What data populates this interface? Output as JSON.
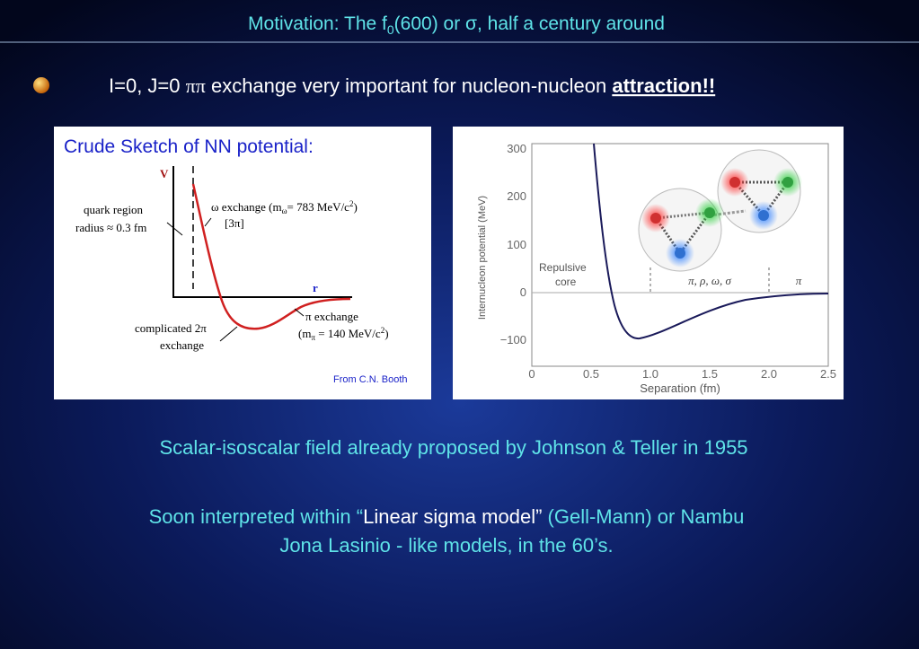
{
  "title": {
    "before": "Motivation: The f",
    "sub": "0",
    "after": "(600) or σ, half a century around"
  },
  "bullet": {
    "text": "I=0, J=0 ",
    "pipi": "ππ",
    "middle": " exchange very important for nucleon-nucleon ",
    "emph": "attraction!!"
  },
  "left_figure": {
    "heading": "Crude Sketch of NN potential:",
    "v_label": "V",
    "r_label": "r",
    "quark_1": "quark region",
    "quark_2": "radius ≈ 0.3 fm",
    "omega_1": "ω exchange (m",
    "omega_sub": "ω",
    "omega_2": "= 783 MeV/c",
    "omega_sup": "2",
    "omega_3": ")",
    "omega_4": "[3π]",
    "two_pi_1": "complicated 2π",
    "two_pi_2": "exchange",
    "pi_1": "π exchange",
    "pi_2": "(m",
    "pi_sub": "π",
    "pi_3": " = 140 MeV/c",
    "pi_sup": "2",
    "pi_4": ")",
    "credit": "From C.N. Booth"
  },
  "right_figure": {
    "yticks": [
      "300",
      "200",
      "100",
      "0",
      "−100"
    ],
    "xticks": [
      "0",
      "0.5",
      "1.0",
      "1.5",
      "2.0",
      "2.5"
    ],
    "ylabel": "Internucleon potential (MeV)",
    "xlabel": "Separation (fm)",
    "core_1": "Repulsive",
    "core_2": "core",
    "mesons": "π, ρ, ω, σ",
    "pion": "π"
  },
  "text_1": "Scalar-isoscalar field already proposed by Johnson & Teller in 1955",
  "text_2": {
    "a": "Soon interpreted within “",
    "b": "Linear sigma model”",
    "c": " (Gell-Mann) or Nambu",
    "d": "Jona Lasinio - like models, in the 60’s."
  }
}
